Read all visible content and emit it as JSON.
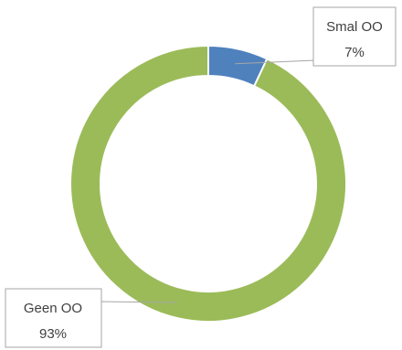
{
  "chart_data": {
    "type": "pie",
    "variant": "doughnut",
    "title": "",
    "legend": "none",
    "slices": [
      {
        "label": "Smal OO",
        "value": 7,
        "value_label": "7%",
        "color": "#4f81bd"
      },
      {
        "label": "Geen OO",
        "value": 93,
        "value_label": "93%",
        "color": "#9bbb59"
      }
    ]
  }
}
